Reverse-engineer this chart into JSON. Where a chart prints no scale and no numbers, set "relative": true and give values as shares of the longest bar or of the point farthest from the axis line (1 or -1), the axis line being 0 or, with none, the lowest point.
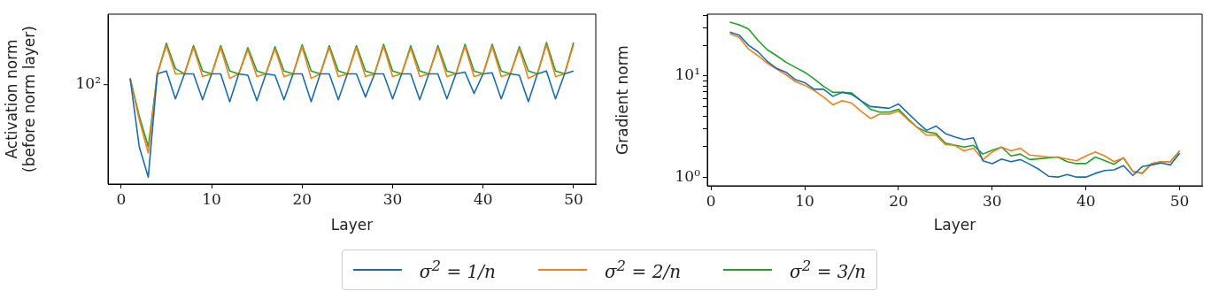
{
  "chart_data": [
    {
      "type": "line",
      "xlabel": "Layer",
      "ylabel": "Activation norm\n(before norm layer)",
      "x": [
        1,
        2,
        3,
        4,
        5,
        6,
        7,
        8,
        9,
        10,
        11,
        12,
        13,
        14,
        15,
        16,
        17,
        18,
        19,
        20,
        21,
        22,
        23,
        24,
        25,
        26,
        27,
        28,
        29,
        30,
        31,
        32,
        33,
        34,
        35,
        36,
        37,
        38,
        39,
        40,
        41,
        42,
        43,
        44,
        45,
        46,
        47,
        48,
        49,
        50
      ],
      "xlim": [
        -1.45,
        52.45
      ],
      "xticks": [
        0,
        10,
        20,
        30,
        40,
        50
      ],
      "relative": true,
      "annotations": [
        "10²"
      ],
      "grid": false,
      "legend": "bottom",
      "marker": "none",
      "line_style": "solid",
      "series": [
        {
          "name": "σ$^{2}$ = 1/n",
          "color": "#1b6ca8",
          "values": [
            0.746,
            0.264,
            0.049,
            0.778,
            0.799,
            0.602,
            0.778,
            0.778,
            0.595,
            0.778,
            0.778,
            0.582,
            0.778,
            0.769,
            0.589,
            0.778,
            0.769,
            0.595,
            0.778,
            0.778,
            0.582,
            0.778,
            0.778,
            0.595,
            0.778,
            0.778,
            0.615,
            0.778,
            0.778,
            0.602,
            0.778,
            0.778,
            0.595,
            0.778,
            0.778,
            0.602,
            0.778,
            0.791,
            0.64,
            0.778,
            0.786,
            0.602,
            0.778,
            0.769,
            0.582,
            0.778,
            0.799,
            0.602,
            0.778,
            0.799
          ]
        },
        {
          "name": "σ$^{2}$ = 2/n",
          "color": "#f07f1e",
          "values": [
            0.746,
            0.456,
            0.219,
            0.778,
            0.978,
            0.778,
            0.778,
            0.964,
            0.76,
            0.778,
            0.964,
            0.746,
            0.778,
            0.95,
            0.76,
            0.778,
            0.956,
            0.76,
            0.778,
            0.97,
            0.746,
            0.778,
            0.964,
            0.76,
            0.778,
            0.964,
            0.76,
            0.778,
            0.973,
            0.76,
            0.778,
            0.961,
            0.76,
            0.778,
            0.964,
            0.76,
            0.778,
            0.973,
            0.76,
            0.778,
            0.973,
            0.76,
            0.778,
            0.956,
            0.746,
            0.778,
            0.984,
            0.76,
            0.778,
            0.984
          ]
        },
        {
          "name": "σ$^{2}$ = 3/n",
          "color": "#22a02c",
          "values": [
            0.746,
            0.482,
            0.264,
            0.778,
            0.995,
            0.815,
            0.778,
            0.978,
            0.799,
            0.778,
            0.978,
            0.799,
            0.778,
            0.964,
            0.799,
            0.778,
            0.97,
            0.799,
            0.778,
            0.984,
            0.799,
            0.778,
            0.978,
            0.799,
            0.778,
            0.978,
            0.799,
            0.778,
            0.987,
            0.799,
            0.778,
            0.976,
            0.799,
            0.778,
            0.978,
            0.799,
            0.778,
            0.987,
            0.799,
            0.778,
            0.987,
            0.799,
            0.778,
            0.97,
            0.799,
            0.778,
            1.0,
            0.799,
            0.778,
            1.0
          ]
        }
      ]
    },
    {
      "type": "line",
      "xlabel": "Layer",
      "ylabel": "Gradient norm",
      "x": [
        2,
        3,
        4,
        5,
        6,
        7,
        8,
        9,
        10,
        11,
        12,
        13,
        14,
        15,
        16,
        17,
        18,
        19,
        20,
        21,
        22,
        23,
        24,
        25,
        26,
        27,
        28,
        29,
        30,
        31,
        32,
        33,
        34,
        35,
        36,
        37,
        38,
        39,
        40,
        41,
        42,
        43,
        44,
        45,
        46,
        47,
        48,
        49,
        50
      ],
      "xlim": [
        -0.4,
        52.4
      ],
      "xticks": [
        0,
        10,
        20,
        30,
        40,
        50
      ],
      "log": "y",
      "ylim": [
        0.82,
        41
      ],
      "yticks": [
        {
          "value": 1,
          "label": "10⁰"
        },
        {
          "value": 2,
          "label": null
        },
        {
          "value": 3,
          "label": null
        },
        {
          "value": 4,
          "label": null
        },
        {
          "value": 5,
          "label": null
        },
        {
          "value": 6,
          "label": null
        },
        {
          "value": 7,
          "label": null
        },
        {
          "value": 8,
          "label": null
        },
        {
          "value": 9,
          "label": null
        },
        {
          "value": 10,
          "label": "10¹"
        },
        {
          "value": 20,
          "label": null
        },
        {
          "value": 30,
          "label": null
        },
        {
          "value": 40,
          "label": null
        }
      ],
      "grid": false,
      "legend": "bottom",
      "marker": "none",
      "line_style": "solid",
      "series": [
        {
          "name": "σ$^{2}$ = 1/n",
          "color": "#1b6ca8",
          "values": [
            27.2,
            25.4,
            20.2,
            17.4,
            14.0,
            11.9,
            10.9,
            9.2,
            8.6,
            7.4,
            7.4,
            6.3,
            6.9,
            6.6,
            5.7,
            5.0,
            4.9,
            4.8,
            5.3,
            4.3,
            3.5,
            2.9,
            3.2,
            2.7,
            2.5,
            2.35,
            2.45,
            1.45,
            1.36,
            1.51,
            1.42,
            1.49,
            1.34,
            1.19,
            1.02,
            1.0,
            1.06,
            1.0,
            1.0,
            1.09,
            1.16,
            1.18,
            1.3,
            1.04,
            1.27,
            1.32,
            1.38,
            1.32,
            1.72
          ]
        },
        {
          "name": "σ$^{2}$ = 2/n",
          "color": "#f07f1e",
          "values": [
            26.3,
            24.1,
            18.5,
            15.9,
            13.4,
            11.7,
            10.3,
            8.8,
            8.1,
            7.2,
            6.2,
            5.2,
            5.7,
            5.4,
            4.5,
            3.8,
            4.2,
            4.2,
            4.5,
            3.7,
            3.1,
            2.6,
            2.6,
            2.1,
            2.06,
            1.82,
            1.93,
            1.49,
            1.77,
            1.98,
            1.82,
            1.93,
            1.65,
            1.62,
            1.58,
            1.58,
            1.51,
            1.45,
            1.62,
            1.77,
            1.62,
            1.42,
            1.55,
            1.14,
            1.09,
            1.36,
            1.42,
            1.42,
            1.8
          ]
        },
        {
          "name": "σ$^{2}$ = 3/n",
          "color": "#22a02c",
          "values": [
            34.2,
            32.2,
            29.2,
            22.6,
            18.2,
            15.9,
            13.7,
            12.2,
            10.9,
            9.4,
            7.9,
            6.9,
            6.9,
            6.8,
            5.7,
            4.7,
            4.4,
            4.4,
            4.7,
            3.8,
            3.1,
            2.8,
            2.7,
            2.17,
            2.07,
            1.98,
            2.06,
            1.69,
            1.85,
            1.98,
            1.62,
            1.69,
            1.49,
            1.52,
            1.55,
            1.58,
            1.42,
            1.36,
            1.36,
            1.58,
            1.46,
            1.34,
            1.55,
            1.14,
            1.09,
            1.36,
            1.42,
            1.42,
            1.82
          ]
        }
      ]
    }
  ]
}
